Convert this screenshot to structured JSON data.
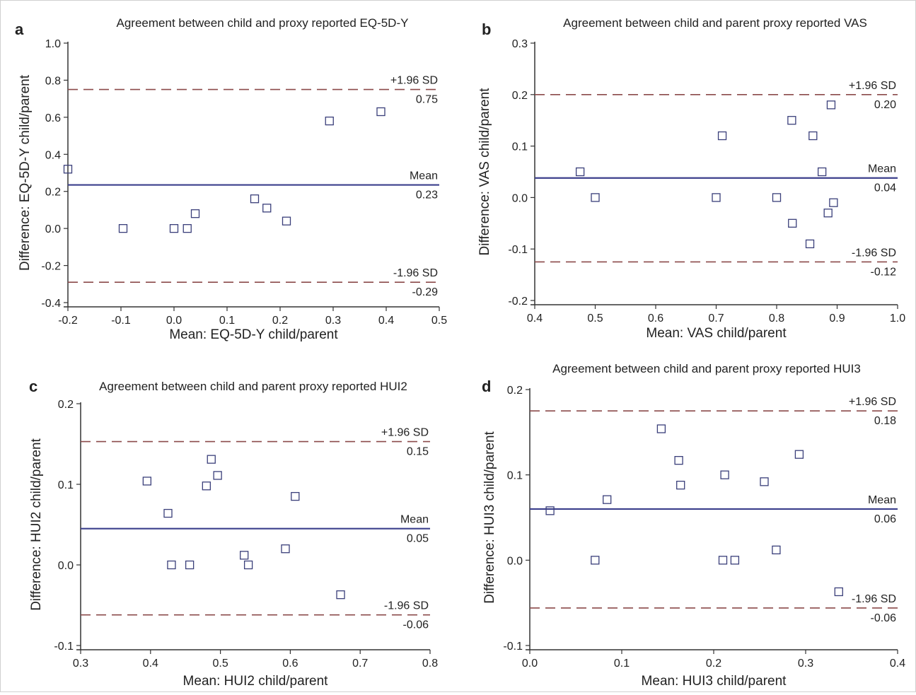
{
  "chart_data": [
    {
      "type": "scatter",
      "panel": "a",
      "title": "Agreement between child and proxy reported EQ-5D-Y",
      "xlabel": "Mean: EQ-5D-Y child/parent",
      "ylabel": "Difference: EQ-5D-Y child/parent",
      "xlim": [
        -0.2,
        0.5
      ],
      "ylim": [
        -0.4,
        1.0
      ],
      "xticks": [
        "-0.2",
        "-0.1",
        "0.0",
        "0.1",
        "0.2",
        "0.3",
        "0.4",
        "0.5"
      ],
      "yticks": [
        "-0.4",
        "-0.2",
        "0.0",
        "0.2",
        "0.4",
        "0.6",
        "0.8",
        "1.0"
      ],
      "points": {
        "x": [
          -0.2,
          -0.096,
          0.0,
          0.025,
          0.04,
          0.152,
          0.175,
          0.212,
          0.293,
          0.39
        ],
        "y": [
          0.32,
          0.0,
          0.0,
          0.0,
          0.08,
          0.16,
          0.11,
          0.04,
          0.58,
          0.63
        ]
      },
      "mean": {
        "value": 0.235,
        "label": "Mean",
        "value_label": "0.23"
      },
      "upper": {
        "value": 0.75,
        "label": "+1.96 SD",
        "value_label": "0.75"
      },
      "lower": {
        "value": -0.29,
        "label": "-1.96 SD",
        "value_label": "-0.29"
      }
    },
    {
      "type": "scatter",
      "panel": "b",
      "title": "Agreement between child and parent proxy reported VAS",
      "xlabel": "Mean: VAS child/parent",
      "ylabel": "Difference: VAS child/parent",
      "xlim": [
        0.4,
        1.0
      ],
      "ylim": [
        -0.2,
        0.3
      ],
      "xticks": [
        "0.4",
        "0.5",
        "0.6",
        "0.7",
        "0.8",
        "0.9",
        "1.0"
      ],
      "yticks": [
        "-0.2",
        "-0.1",
        "0.0",
        "0.1",
        "0.2",
        "0.3"
      ],
      "points": {
        "x": [
          0.475,
          0.5,
          0.7,
          0.71,
          0.8,
          0.825,
          0.826,
          0.855,
          0.86,
          0.875,
          0.885,
          0.89,
          0.894
        ],
        "y": [
          0.05,
          0.0,
          0.0,
          0.12,
          0.0,
          0.15,
          -0.05,
          -0.09,
          0.12,
          0.05,
          -0.03,
          0.18,
          -0.01
        ]
      },
      "mean": {
        "value": 0.038,
        "label": "Mean",
        "value_label": "0.04"
      },
      "upper": {
        "value": 0.2,
        "label": "+1.96 SD",
        "value_label": "0.20"
      },
      "lower": {
        "value": -0.125,
        "label": "-1.96 SD",
        "value_label": "-0.12"
      }
    },
    {
      "type": "scatter",
      "panel": "c",
      "title": "Agreement between child and parent proxy reported HUI2",
      "xlabel": "Mean: HUI2 child/parent",
      "ylabel": "Difference: HUI2 child/parent",
      "xlim": [
        0.3,
        0.8
      ],
      "ylim": [
        -0.1,
        0.2
      ],
      "xticks": [
        "0.3",
        "0.4",
        "0.5",
        "0.6",
        "0.7",
        "0.8"
      ],
      "yticks": [
        "-0.1",
        "0.0",
        "0.1",
        "0.2"
      ],
      "points": {
        "x": [
          0.395,
          0.425,
          0.43,
          0.456,
          0.48,
          0.487,
          0.496,
          0.534,
          0.54,
          0.593,
          0.607,
          0.672
        ],
        "y": [
          0.104,
          0.064,
          0.0,
          0.0,
          0.098,
          0.131,
          0.111,
          0.012,
          0.0,
          0.02,
          0.085,
          -0.037
        ]
      },
      "mean": {
        "value": 0.045,
        "label": "Mean",
        "value_label": "0.05"
      },
      "upper": {
        "value": 0.153,
        "label": "+1.96 SD",
        "value_label": "0.15"
      },
      "lower": {
        "value": -0.062,
        "label": "-1.96 SD",
        "value_label": "-0.06"
      }
    },
    {
      "type": "scatter",
      "panel": "d",
      "title": "Agreement between child and parent proxy reported HUI3",
      "xlabel": "Mean: HUI3 child/parent",
      "ylabel": "Difference: HUI3 child/parent",
      "xlim": [
        0.0,
        0.4
      ],
      "ylim": [
        -0.1,
        0.2
      ],
      "xticks": [
        "0.0",
        "0.1",
        "0.2",
        "0.3",
        "0.4"
      ],
      "yticks": [
        "-0.1",
        "0.0",
        "0.1",
        "0.2"
      ],
      "points": {
        "x": [
          0.022,
          0.071,
          0.084,
          0.143,
          0.162,
          0.164,
          0.21,
          0.212,
          0.223,
          0.255,
          0.268,
          0.293,
          0.336
        ],
        "y": [
          0.058,
          0.0,
          0.071,
          0.154,
          0.117,
          0.088,
          0.0,
          0.1,
          0.0,
          0.092,
          0.012,
          0.124,
          -0.037
        ]
      },
      "mean": {
        "value": 0.06,
        "label": "Mean",
        "value_label": "0.06"
      },
      "upper": {
        "value": 0.175,
        "label": "+1.96 SD",
        "value_label": "0.18"
      },
      "lower": {
        "value": -0.056,
        "label": "-1.96 SD",
        "value_label": "-0.06"
      }
    }
  ],
  "colors": {
    "points": "#3a3f7a",
    "mean_line": "#3b3f8c",
    "sd_line": "#8b4a4a",
    "axis": "#333333"
  }
}
